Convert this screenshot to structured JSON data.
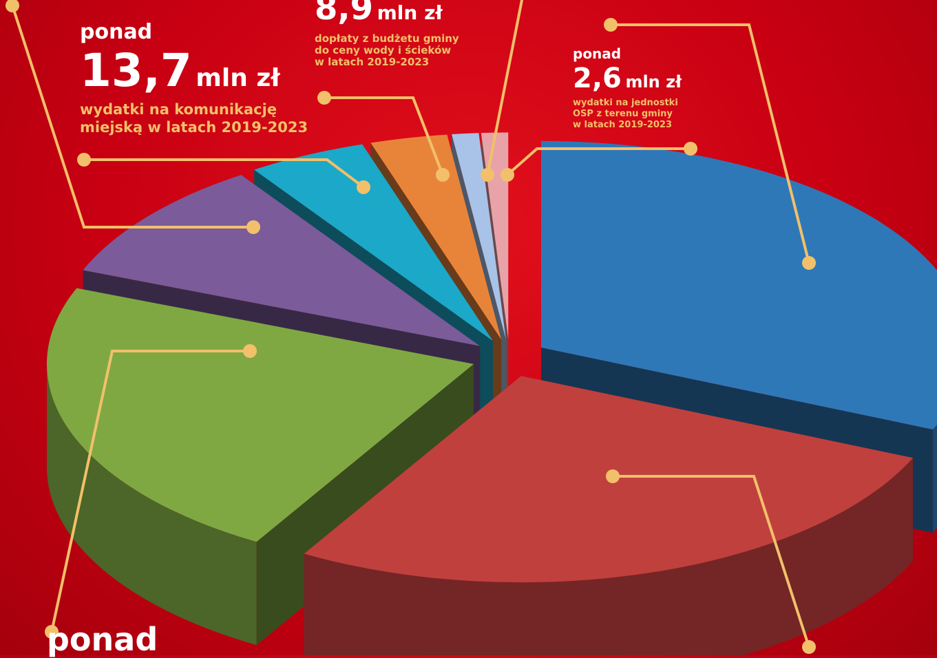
{
  "labels": {
    "komunikacja": {
      "prefix": "ponad",
      "value": "13,7",
      "unit": "mln zł",
      "desc_line1": "wydatki na komunikację",
      "desc_line2": "miejską w latach 2019-2023"
    },
    "woda": {
      "value": "8,9",
      "unit": "mln zł",
      "desc_line1": "dopłaty z budżetu gminy",
      "desc_line2": "do ceny wody i ścieków",
      "desc_line3": "w latach 2019-2023"
    },
    "osp": {
      "prefix": "ponad",
      "value": "2,6",
      "unit": "mln zł",
      "desc_line1": "wydatki na jednostki",
      "desc_line2": "OSP z terenu gminy",
      "desc_line3": "w latach 2019-2023"
    },
    "bottom_left": {
      "prefix": "ponad"
    }
  },
  "chart_data": {
    "type": "pie",
    "style": "3d-exploded",
    "slices": [
      {
        "value": 28.0,
        "color": "#2f78b8"
      },
      {
        "value": 24.0,
        "color": "#c0403e"
      },
      {
        "value": 20.0,
        "color": "#7fa843"
      },
      {
        "value": 8.5,
        "color": "#7b5b99"
      },
      {
        "value": 4.0,
        "color": "#1ca8c8"
      },
      {
        "value": 2.6,
        "color": "#e8843a"
      },
      {
        "value": 0.9,
        "color": "#a9c2e8"
      },
      {
        "value": 0.9,
        "color": "#e8a3a8"
      }
    ],
    "callout_color": "#f2c06a"
  }
}
